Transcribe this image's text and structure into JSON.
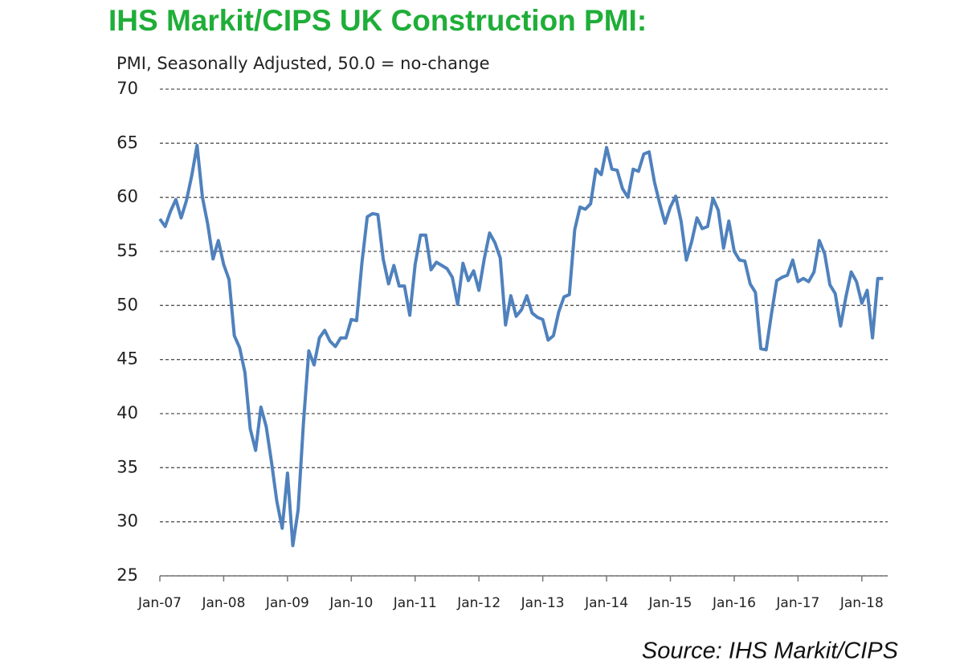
{
  "chart_data": {
    "type": "line",
    "title": "IHS Markit/CIPS UK Construction PMI:",
    "subtitle": "PMI, Seasonally Adjusted, 50.0 = no-change",
    "source": "Source: IHS Markit/CIPS",
    "categories": [
      "Jan-07",
      null,
      null,
      null,
      null,
      null,
      null,
      null,
      null,
      null,
      null,
      null,
      "Jan-08",
      null,
      null,
      null,
      null,
      null,
      null,
      null,
      null,
      null,
      null,
      null,
      "Jan-09",
      null,
      null,
      null,
      null,
      null,
      null,
      null,
      null,
      null,
      null,
      null,
      "Jan-10",
      null,
      null,
      null,
      null,
      null,
      null,
      null,
      null,
      null,
      null,
      null,
      "Jan-11",
      null,
      null,
      null,
      null,
      null,
      null,
      null,
      null,
      null,
      null,
      null,
      "Jan-12",
      null,
      null,
      null,
      null,
      null,
      null,
      null,
      null,
      null,
      null,
      null,
      "Jan-13",
      null,
      null,
      null,
      null,
      null,
      null,
      null,
      null,
      null,
      null,
      null,
      "Jan-14",
      null,
      null,
      null,
      null,
      null,
      null,
      null,
      null,
      null,
      null,
      null,
      "Jan-15",
      null,
      null,
      null,
      null,
      null,
      null,
      null,
      null,
      null,
      null,
      null,
      "Jan-16",
      null,
      null,
      null,
      null,
      null,
      null,
      null,
      null,
      null,
      null,
      null,
      "Jan-17",
      null,
      null,
      null,
      null,
      null,
      null,
      null,
      null,
      null,
      null,
      null,
      "Jan-18",
      null,
      null,
      null,
      null
    ],
    "values": [
      58.0,
      57.3,
      58.7,
      59.8,
      58.1,
      59.7,
      62.0,
      64.8,
      60.0,
      57.5,
      54.3,
      56.0,
      53.8,
      52.4,
      47.2,
      46.1,
      43.8,
      38.6,
      36.6,
      40.6,
      38.8,
      35.5,
      31.9,
      29.4,
      34.5,
      27.8,
      31.1,
      39.1,
      45.8,
      44.5,
      47.0,
      47.7,
      46.7,
      46.2,
      47.0,
      47.0,
      48.7,
      48.6,
      54.0,
      58.2,
      58.5,
      58.4,
      54.3,
      52.0,
      53.7,
      51.8,
      51.8,
      49.1,
      53.8,
      56.5,
      56.5,
      53.3,
      54.0,
      53.7,
      53.4,
      52.6,
      50.1,
      53.9,
      52.3,
      53.2,
      51.4,
      54.3,
      56.7,
      55.8,
      54.4,
      48.2,
      50.9,
      49.0,
      49.6,
      50.9,
      49.3,
      48.9,
      48.7,
      46.8,
      47.2,
      49.4,
      50.8,
      51.0,
      57.0,
      59.1,
      58.9,
      59.4,
      62.6,
      62.1,
      64.6,
      62.6,
      62.5,
      60.8,
      60.0,
      62.6,
      62.4,
      64.0,
      64.2,
      61.4,
      59.4,
      57.6,
      59.1,
      60.1,
      57.8,
      54.2,
      55.9,
      58.1,
      57.1,
      57.3,
      59.9,
      58.8,
      55.3,
      57.8,
      55.0,
      54.2,
      54.1,
      52.0,
      51.2,
      46.0,
      45.9,
      49.2,
      52.3,
      52.6,
      52.8,
      54.2,
      52.2,
      52.5,
      52.2,
      53.1,
      56.0,
      54.8,
      51.9,
      51.1,
      48.1,
      50.8,
      53.1,
      52.2,
      50.2,
      51.4,
      47.0,
      52.5,
      52.5
    ],
    "color": "#4f81bd",
    "ylim": [
      25,
      70
    ],
    "yticks": [
      25,
      30,
      35,
      40,
      45,
      50,
      55,
      60,
      65,
      70
    ],
    "grid": true
  }
}
